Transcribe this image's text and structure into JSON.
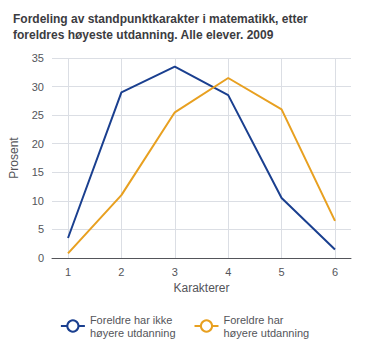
{
  "chart_data": {
    "type": "line",
    "title": "Fordeling av standpunktkarakter i matematikk, etter\nforeldres høyeste utdanning. Alle elever. 2009",
    "xlabel": "Karakterer",
    "ylabel": "Prosent",
    "x": [
      1,
      2,
      3,
      4,
      5,
      6
    ],
    "series": [
      {
        "name": "Foreldre har ikke\nhøyere utdanning",
        "color": "#1a3f8f",
        "values": [
          3.5,
          29.0,
          33.5,
          28.5,
          10.5,
          1.5
        ]
      },
      {
        "name": "Foreldre har\nhøyere utdanning",
        "color": "#e8a020",
        "values": [
          0.8,
          11.0,
          25.5,
          31.5,
          26.0,
          6.5
        ]
      }
    ],
    "xlim": [
      0.7,
      6.3
    ],
    "xticks": [
      1,
      2,
      3,
      4,
      5,
      6
    ],
    "ylim": [
      0,
      35
    ],
    "yticks": [
      0,
      5,
      10,
      15,
      20,
      25,
      30,
      35
    ],
    "grid": true,
    "legend": "bottom"
  }
}
